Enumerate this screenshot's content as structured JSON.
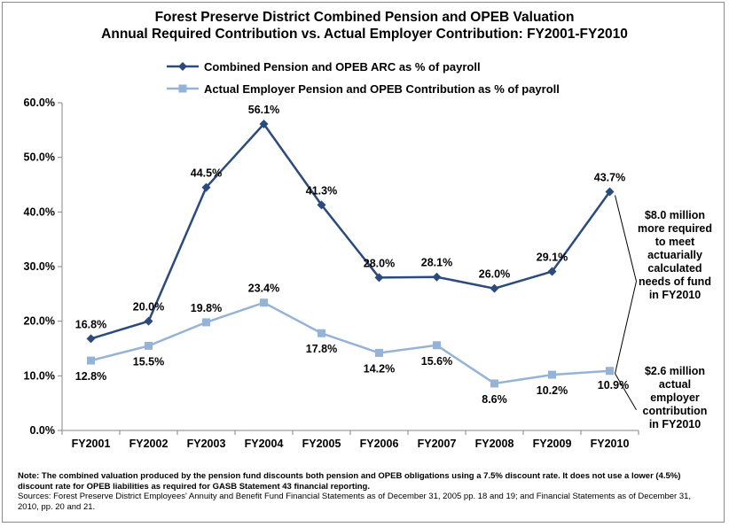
{
  "title_line1": "Forest Preserve District Combined Pension and OPEB Valuation",
  "title_line2": "Annual Required Contribution vs. Actual Employer Contribution: FY2001-FY2010",
  "colors": {
    "series1": "#2a4b7c",
    "series2": "#95b3d7",
    "axis": "#868686"
  },
  "chart_data": {
    "type": "line",
    "categories": [
      "FY2001",
      "FY2002",
      "FY2003",
      "FY2004",
      "FY2005",
      "FY2006",
      "FY2007",
      "FY2008",
      "FY2009",
      "FY2010"
    ],
    "ylim": [
      0,
      60
    ],
    "yticks": [
      "0.0%",
      "10.0%",
      "20.0%",
      "30.0%",
      "40.0%",
      "50.0%",
      "60.0%"
    ],
    "legend_position": "top",
    "grid": false,
    "series": [
      {
        "name": "Combined Pension and OPEB ARC as % of payroll",
        "values": [
          16.8,
          20.0,
          44.5,
          56.1,
          41.3,
          28.0,
          28.1,
          26.0,
          29.1,
          43.7
        ],
        "labels": [
          "16.8%",
          "20.0%",
          "44.5%",
          "56.1%",
          "41.3%",
          "28.0%",
          "28.1%",
          "26.0%",
          "29.1%",
          "43.7%"
        ],
        "marker": "diamond"
      },
      {
        "name": "Actual Employer Pension and OPEB Contribution as % of payroll",
        "values": [
          12.8,
          15.5,
          19.8,
          23.4,
          17.8,
          14.2,
          15.6,
          8.6,
          10.2,
          10.9
        ],
        "labels": [
          "12.8%",
          "15.5%",
          "19.8%",
          "23.4%",
          "17.8%",
          "14.2%",
          "15.6%",
          "8.6%",
          "10.2%",
          "10.9%"
        ],
        "marker": "square"
      }
    ],
    "annotations": [
      "$8.0 million more required to meet actuarially calculated needs of fund in FY2010",
      "$2.6 million actual employer contribution in FY2010"
    ]
  },
  "note": {
    "label": "Note:",
    "text": "The combined valuation produced by the pension fund discounts both pension and OPEB obligations using a 7.5% discount rate. It does not use a lower (4.5%) discount rate for OPEB liabilities as required for GASB Statement 43 financial reporting.",
    "sources": "Sources: Forest Preserve District Employees' Annuity and Benefit Fund Financial Statements as of December 31, 2005 pp. 18 and 19; and Financial Statements as of December 31, 2010, pp. 20 and 21."
  }
}
